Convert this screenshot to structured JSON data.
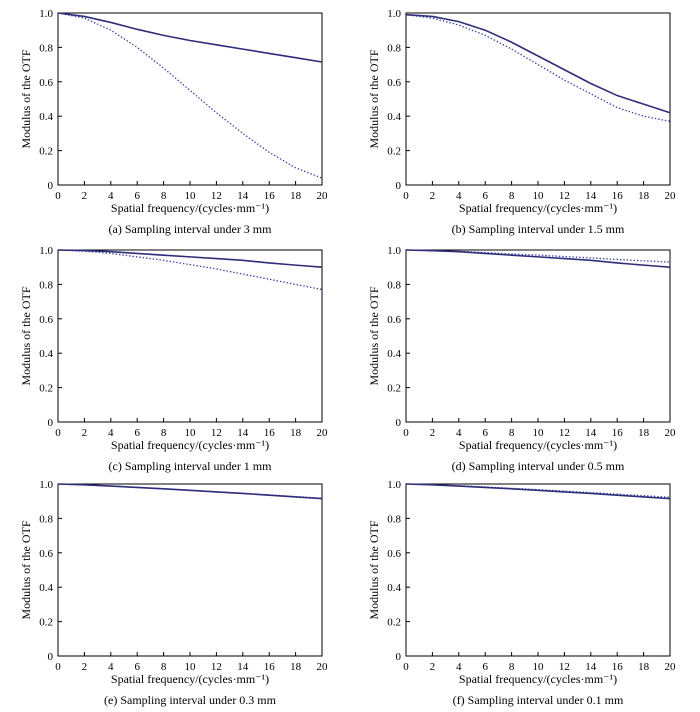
{
  "colors": {
    "solid": "#2e2e7a",
    "dotted": "#3a3aa8",
    "axis": "#000000"
  },
  "chart_data": [
    {
      "type": "line",
      "caption": "(a) Sampling interval under 3 mm",
      "xlabel": "Spatial frequency/(cycles·mm⁻¹)",
      "ylabel": "Modulus of the OTF",
      "xlim": [
        0,
        20
      ],
      "ylim": [
        0,
        1
      ],
      "xticks": [
        "0",
        "2",
        "4",
        "6",
        "8",
        "10",
        "12",
        "14",
        "16",
        "18",
        "20"
      ],
      "yticks": [
        "0",
        "0.2",
        "0.4",
        "0.6",
        "0.8",
        "1.0"
      ],
      "series": [
        {
          "name": "solid",
          "style": "solid",
          "x": [
            0,
            2,
            4,
            6,
            8,
            10,
            12,
            14,
            16,
            18,
            20
          ],
          "y": [
            1.0,
            0.98,
            0.945,
            0.905,
            0.87,
            0.84,
            0.815,
            0.79,
            0.765,
            0.74,
            0.715
          ]
        },
        {
          "name": "dotted",
          "style": "dotted",
          "x": [
            0,
            2,
            4,
            6,
            8,
            10,
            12,
            14,
            16,
            18,
            20
          ],
          "y": [
            1.0,
            0.97,
            0.9,
            0.8,
            0.68,
            0.55,
            0.42,
            0.3,
            0.19,
            0.1,
            0.04
          ]
        }
      ]
    },
    {
      "type": "line",
      "caption": "(b) Sampling interval under 1.5 mm",
      "xlabel": "Spatial frequency/(cycles·mm⁻¹)",
      "ylabel": "Modulus of the OTF",
      "xlim": [
        0,
        20
      ],
      "ylim": [
        0,
        1
      ],
      "xticks": [
        "0",
        "2",
        "4",
        "6",
        "8",
        "10",
        "12",
        "14",
        "16",
        "18",
        "20"
      ],
      "yticks": [
        "0",
        "0.2",
        "0.4",
        "0.6",
        "0.8",
        "1.0"
      ],
      "series": [
        {
          "name": "solid",
          "style": "solid",
          "x": [
            0,
            2,
            4,
            6,
            8,
            10,
            12,
            14,
            16,
            18,
            20
          ],
          "y": [
            0.99,
            0.98,
            0.95,
            0.9,
            0.83,
            0.75,
            0.67,
            0.59,
            0.52,
            0.47,
            0.42
          ]
        },
        {
          "name": "dotted",
          "style": "dotted",
          "x": [
            0,
            2,
            4,
            6,
            8,
            10,
            12,
            14,
            16,
            18,
            20
          ],
          "y": [
            0.99,
            0.97,
            0.93,
            0.87,
            0.79,
            0.7,
            0.61,
            0.53,
            0.45,
            0.4,
            0.37
          ]
        }
      ]
    },
    {
      "type": "line",
      "caption": "(c) Sampling interval under 1 mm",
      "xlabel": "Spatial frequency/(cycles·mm⁻¹)",
      "ylabel": "Modulus of the OTF",
      "xlim": [
        0,
        20
      ],
      "ylim": [
        0,
        1
      ],
      "xticks": [
        "0",
        "2",
        "4",
        "6",
        "8",
        "10",
        "12",
        "14",
        "16",
        "18",
        "20"
      ],
      "yticks": [
        "0",
        "0.2",
        "0.4",
        "0.6",
        "0.8",
        "1.0"
      ],
      "series": [
        {
          "name": "solid",
          "style": "solid",
          "x": [
            0,
            2,
            4,
            6,
            8,
            10,
            12,
            14,
            16,
            18,
            20
          ],
          "y": [
            1.0,
            0.997,
            0.99,
            0.98,
            0.97,
            0.96,
            0.95,
            0.94,
            0.925,
            0.912,
            0.9
          ]
        },
        {
          "name": "dotted",
          "style": "dotted",
          "x": [
            0,
            2,
            4,
            6,
            8,
            10,
            12,
            14,
            16,
            18,
            20
          ],
          "y": [
            1.0,
            0.993,
            0.98,
            0.96,
            0.94,
            0.915,
            0.89,
            0.86,
            0.83,
            0.8,
            0.77
          ]
        }
      ]
    },
    {
      "type": "line",
      "caption": "(d) Sampling interval under 0.5 mm",
      "xlabel": "Spatial frequency/(cycles·mm⁻¹)",
      "ylabel": "Modulus of the OTF",
      "xlim": [
        0,
        20
      ],
      "ylim": [
        0,
        1
      ],
      "xticks": [
        "0",
        "2",
        "4",
        "6",
        "8",
        "10",
        "12",
        "14",
        "16",
        "18",
        "20"
      ],
      "yticks": [
        "0",
        "0.2",
        "0.4",
        "0.6",
        "0.8",
        "1.0"
      ],
      "series": [
        {
          "name": "solid",
          "style": "solid",
          "x": [
            0,
            2,
            4,
            6,
            8,
            10,
            12,
            14,
            16,
            18,
            20
          ],
          "y": [
            1.0,
            0.996,
            0.99,
            0.98,
            0.97,
            0.96,
            0.95,
            0.94,
            0.925,
            0.912,
            0.9
          ]
        },
        {
          "name": "dotted",
          "style": "dotted",
          "x": [
            0,
            2,
            4,
            6,
            8,
            10,
            12,
            14,
            16,
            18,
            20
          ],
          "y": [
            1.0,
            0.997,
            0.992,
            0.985,
            0.977,
            0.97,
            0.962,
            0.954,
            0.945,
            0.937,
            0.93
          ]
        }
      ]
    },
    {
      "type": "line",
      "caption": "(e) Sampling interval under 0.3 mm",
      "xlabel": "Spatial frequency/(cycles·mm⁻¹)",
      "ylabel": "Modulus of the OTF",
      "xlim": [
        0,
        20
      ],
      "ylim": [
        0,
        1
      ],
      "xticks": [
        "0",
        "2",
        "4",
        "6",
        "8",
        "10",
        "12",
        "14",
        "16",
        "18",
        "20"
      ],
      "yticks": [
        "0",
        "0.2",
        "0.4",
        "0.6",
        "0.8",
        "1.0"
      ],
      "series": [
        {
          "name": "solid",
          "style": "solid",
          "x": [
            0,
            2,
            4,
            6,
            8,
            10,
            12,
            14,
            16,
            18,
            20
          ],
          "y": [
            1.0,
            0.995,
            0.988,
            0.98,
            0.972,
            0.963,
            0.954,
            0.945,
            0.935,
            0.925,
            0.915
          ]
        },
        {
          "name": "dotted",
          "style": "dotted",
          "x": [
            0,
            2,
            4,
            6,
            8,
            10,
            12,
            14,
            16,
            18,
            20
          ],
          "y": [
            1.0,
            0.995,
            0.988,
            0.98,
            0.972,
            0.963,
            0.955,
            0.946,
            0.937,
            0.927,
            0.918
          ]
        }
      ]
    },
    {
      "type": "line",
      "caption": "(f) Sampling interval under 0.1 mm",
      "xlabel": "Spatial frequency/(cycles·mm⁻¹)",
      "ylabel": "Modulus of the OTF",
      "xlim": [
        0,
        20
      ],
      "ylim": [
        0,
        1
      ],
      "xticks": [
        "0",
        "2",
        "4",
        "6",
        "8",
        "10",
        "12",
        "14",
        "16",
        "18",
        "20"
      ],
      "yticks": [
        "0",
        "0.2",
        "0.4",
        "0.6",
        "0.8",
        "1.0"
      ],
      "series": [
        {
          "name": "solid",
          "style": "solid",
          "x": [
            0,
            2,
            4,
            6,
            8,
            10,
            12,
            14,
            16,
            18,
            20
          ],
          "y": [
            1.0,
            0.995,
            0.988,
            0.98,
            0.972,
            0.963,
            0.954,
            0.945,
            0.935,
            0.925,
            0.915
          ]
        },
        {
          "name": "dotted",
          "style": "dotted",
          "x": [
            0,
            2,
            4,
            6,
            8,
            10,
            12,
            14,
            16,
            18,
            20
          ],
          "y": [
            1.0,
            0.996,
            0.99,
            0.983,
            0.975,
            0.967,
            0.959,
            0.95,
            0.941,
            0.932,
            0.923
          ]
        }
      ]
    }
  ]
}
